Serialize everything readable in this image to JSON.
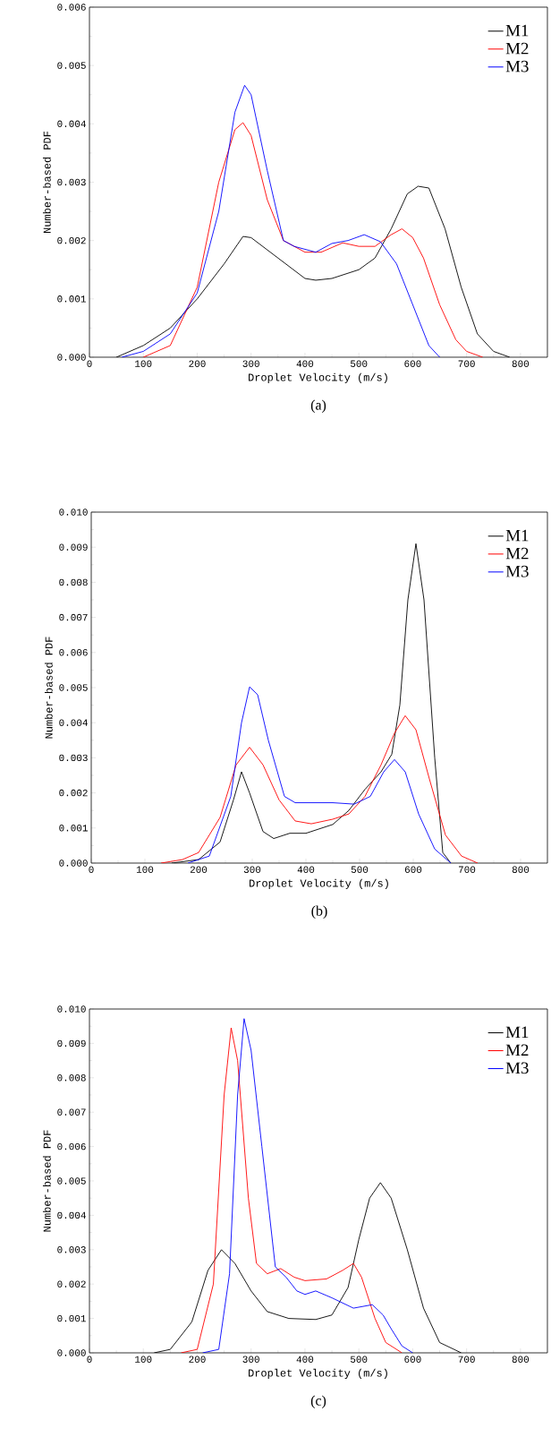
{
  "chart_data": [
    {
      "type": "line",
      "xlabel": "Droplet Velocity (m/s)",
      "ylabel": "Number-based PDF",
      "annotations": [
        "(a)"
      ],
      "xlim": [
        0,
        850
      ],
      "xticks": [
        0,
        100,
        200,
        300,
        400,
        500,
        600,
        700,
        800
      ],
      "ylim": [
        0,
        0.006
      ],
      "yticks": [
        {
          "value": 0,
          "label": "0.000"
        },
        {
          "value": 0.001,
          "label": "0.001"
        },
        {
          "value": 0.002,
          "label": "0.002"
        },
        {
          "value": 0.003,
          "label": "0.003"
        },
        {
          "value": 0.004,
          "label": "0.004"
        },
        {
          "value": 0.005,
          "label": "0.005"
        },
        {
          "value": 0.006,
          "label": "0.006"
        }
      ],
      "legend": "top right",
      "grid": false,
      "marker": "none",
      "line_style": "solid",
      "series": [
        {
          "name": "M1",
          "color": "#000000",
          "x": [
            50,
            100,
            150,
            200,
            250,
            285,
            300,
            350,
            400,
            420,
            450,
            500,
            530,
            560,
            590,
            610,
            630,
            660,
            690,
            720,
            750,
            780
          ],
          "values": [
            0,
            0.0002,
            0.0005,
            0.001,
            0.0016,
            0.00207,
            0.00205,
            0.0017,
            0.00135,
            0.00132,
            0.00135,
            0.0015,
            0.0017,
            0.0022,
            0.0028,
            0.00293,
            0.0029,
            0.0022,
            0.0012,
            0.0004,
            0.0001,
            0
          ]
        },
        {
          "name": "M2",
          "color": "#ff0000",
          "x": [
            100,
            150,
            200,
            240,
            270,
            285,
            300,
            330,
            360,
            400,
            430,
            470,
            500,
            530,
            560,
            580,
            600,
            620,
            650,
            680,
            700,
            730
          ],
          "values": [
            0,
            0.0002,
            0.0012,
            0.003,
            0.0039,
            0.00402,
            0.0038,
            0.0027,
            0.002,
            0.0018,
            0.0018,
            0.00196,
            0.0019,
            0.0019,
            0.0021,
            0.0022,
            0.00205,
            0.0017,
            0.0009,
            0.0003,
            0.0001,
            0
          ]
        },
        {
          "name": "M3",
          "color": "#0000ff",
          "x": [
            60,
            100,
            150,
            200,
            240,
            270,
            288,
            300,
            330,
            360,
            380,
            400,
            420,
            450,
            480,
            510,
            540,
            570,
            600,
            630,
            650
          ],
          "values": [
            0,
            0.0001,
            0.0004,
            0.0011,
            0.0025,
            0.0042,
            0.00466,
            0.0045,
            0.0032,
            0.002,
            0.0019,
            0.00185,
            0.0018,
            0.00195,
            0.002,
            0.0021,
            0.00198,
            0.0016,
            0.0009,
            0.0002,
            0
          ]
        }
      ]
    },
    {
      "type": "line",
      "xlabel": "Droplet Velocity (m/s)",
      "ylabel": "Number-based PDF",
      "annotations": [
        "(b)"
      ],
      "xlim": [
        0,
        850
      ],
      "xticks": [
        0,
        100,
        200,
        300,
        400,
        500,
        600,
        700,
        800
      ],
      "ylim": [
        0,
        0.01
      ],
      "yticks": [
        {
          "value": 0,
          "label": "0.000"
        },
        {
          "value": 0.001,
          "label": "0.001"
        },
        {
          "value": 0.002,
          "label": "0.002"
        },
        {
          "value": 0.003,
          "label": "0.003"
        },
        {
          "value": 0.004,
          "label": "0.004"
        },
        {
          "value": 0.005,
          "label": "0.005"
        },
        {
          "value": 0.006,
          "label": "0.006"
        },
        {
          "value": 0.007,
          "label": "0.007"
        },
        {
          "value": 0.008,
          "label": "0.008"
        },
        {
          "value": 0.009,
          "label": "0.009"
        },
        {
          "value": 0.01,
          "label": "0.010"
        }
      ],
      "legend": "top right",
      "grid": false,
      "marker": "none",
      "line_style": "solid",
      "series": [
        {
          "name": "M1",
          "color": "#000000",
          "x": [
            150,
            200,
            240,
            265,
            280,
            295,
            320,
            340,
            370,
            400,
            450,
            480,
            510,
            540,
            560,
            575,
            590,
            605,
            620,
            640,
            655,
            670
          ],
          "values": [
            0,
            0.0001,
            0.0006,
            0.0018,
            0.0026,
            0.002,
            0.0009,
            0.0007,
            0.00085,
            0.00085,
            0.0011,
            0.0015,
            0.0021,
            0.0026,
            0.0031,
            0.0045,
            0.0075,
            0.0091,
            0.0075,
            0.003,
            0.0003,
            0
          ]
        },
        {
          "name": "M2",
          "color": "#ff0000",
          "x": [
            130,
            170,
            200,
            240,
            270,
            295,
            320,
            350,
            380,
            410,
            450,
            480,
            510,
            540,
            565,
            585,
            605,
            630,
            660,
            690,
            720
          ],
          "values": [
            0,
            0.0001,
            0.0003,
            0.0013,
            0.0028,
            0.0033,
            0.0028,
            0.0018,
            0.0012,
            0.00112,
            0.00125,
            0.0014,
            0.0019,
            0.0028,
            0.0037,
            0.0042,
            0.0038,
            0.0024,
            0.0008,
            0.0002,
            0
          ]
        },
        {
          "name": "M3",
          "color": "#0000ff",
          "x": [
            180,
            220,
            260,
            280,
            295,
            310,
            330,
            360,
            380,
            450,
            490,
            520,
            545,
            565,
            585,
            610,
            640,
            670
          ],
          "values": [
            0,
            0.0002,
            0.0019,
            0.004,
            0.00502,
            0.0048,
            0.0035,
            0.0019,
            0.00172,
            0.00172,
            0.00168,
            0.0019,
            0.0026,
            0.00295,
            0.0026,
            0.0014,
            0.0004,
            0
          ]
        }
      ]
    },
    {
      "type": "line",
      "xlabel": "Droplet Velocity (m/s)",
      "ylabel": "Number-based PDF",
      "annotations": [
        "(c)"
      ],
      "xlim": [
        0,
        850
      ],
      "xticks": [
        0,
        100,
        200,
        300,
        400,
        500,
        600,
        700,
        800
      ],
      "ylim": [
        0,
        0.01
      ],
      "yticks": [
        {
          "value": 0,
          "label": "0.000"
        },
        {
          "value": 0.001,
          "label": "0.001"
        },
        {
          "value": 0.002,
          "label": "0.002"
        },
        {
          "value": 0.003,
          "label": "0.003"
        },
        {
          "value": 0.004,
          "label": "0.004"
        },
        {
          "value": 0.005,
          "label": "0.005"
        },
        {
          "value": 0.006,
          "label": "0.006"
        },
        {
          "value": 0.007,
          "label": "0.007"
        },
        {
          "value": 0.008,
          "label": "0.008"
        },
        {
          "value": 0.009,
          "label": "0.009"
        },
        {
          "value": 0.01,
          "label": "0.010"
        }
      ],
      "legend": "top right",
      "grid": false,
      "marker": "none",
      "line_style": "solid",
      "series": [
        {
          "name": "M1",
          "color": "#000000",
          "x": [
            120,
            150,
            190,
            220,
            245,
            270,
            300,
            330,
            370,
            420,
            450,
            480,
            500,
            520,
            540,
            560,
            590,
            620,
            650,
            690
          ],
          "values": [
            0,
            0.0001,
            0.0009,
            0.0024,
            0.003,
            0.0026,
            0.0018,
            0.0012,
            0.001,
            0.00097,
            0.0011,
            0.0019,
            0.0033,
            0.0045,
            0.00495,
            0.0045,
            0.003,
            0.0013,
            0.0003,
            0
          ]
        },
        {
          "name": "M2",
          "color": "#ff0000",
          "x": [
            170,
            200,
            230,
            250,
            263,
            275,
            295,
            310,
            330,
            355,
            380,
            400,
            440,
            470,
            490,
            505,
            530,
            550,
            580
          ],
          "values": [
            0,
            0.0001,
            0.002,
            0.0075,
            0.00945,
            0.0085,
            0.0045,
            0.0026,
            0.0023,
            0.00245,
            0.0022,
            0.0021,
            0.00215,
            0.0024,
            0.0026,
            0.0022,
            0.001,
            0.0003,
            0
          ]
        },
        {
          "name": "M3",
          "color": "#0000ff",
          "x": [
            210,
            240,
            260,
            275,
            287,
            300,
            320,
            345,
            365,
            385,
            400,
            420,
            450,
            490,
            525,
            545,
            560,
            580,
            600
          ],
          "values": [
            0,
            0.0001,
            0.0023,
            0.0075,
            0.00972,
            0.0088,
            0.006,
            0.0025,
            0.0022,
            0.0018,
            0.0017,
            0.0018,
            0.0016,
            0.0013,
            0.0014,
            0.0011,
            0.0007,
            0.0002,
            0
          ]
        }
      ]
    }
  ]
}
